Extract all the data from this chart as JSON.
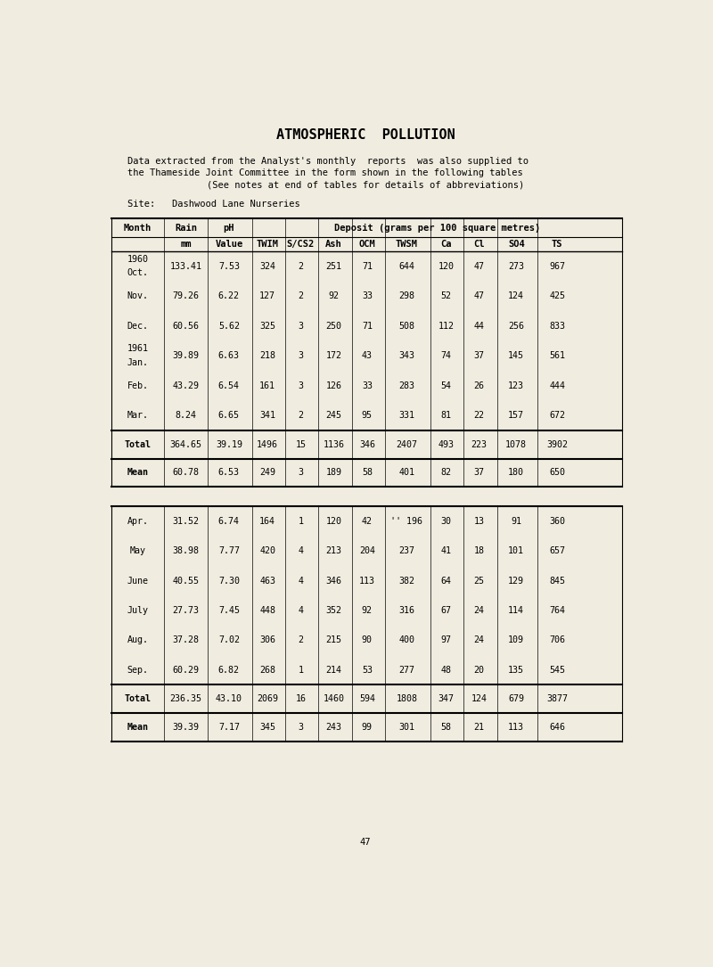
{
  "title": "ATMOSPHERIC  POLLUTION",
  "intro_line1": "Data extracted from the Analyst's monthly  reports  was also supplied to",
  "intro_line2": "the Thameside Joint Committee in the form shown in the following tables",
  "note": "(See notes at end of tables for details of abbreviations)",
  "site": "Site:   Dashwood Lane Nurseries",
  "page_number": "47",
  "bg_color": "#f0ece0",
  "table1": {
    "year_rows": [
      {
        "year": "1960",
        "month": "Oct.",
        "rain": "133.41",
        "ph": "7.53",
        "twim": "324",
        "scs2": "2",
        "ash": "251",
        "ocm": "71",
        "twsm": "644",
        "ca": "120",
        "cl": "47",
        "so4": "273",
        "ts": "967"
      },
      {
        "year": "",
        "month": "Nov.",
        "rain": "79.26",
        "ph": "6.22",
        "twim": "127",
        "scs2": "2",
        "ash": "92",
        "ocm": "33",
        "twsm": "298",
        "ca": "52",
        "cl": "47",
        "so4": "124",
        "ts": "425"
      },
      {
        "year": "",
        "month": "Dec.",
        "rain": "60.56",
        "ph": "5.62",
        "twim": "325",
        "scs2": "3",
        "ash": "250",
        "ocm": "71",
        "twsm": "508",
        "ca": "112",
        "cl": "44",
        "so4": "256",
        "ts": "833"
      },
      {
        "year": "1961",
        "month": "Jan.",
        "rain": "39.89",
        "ph": "6.63",
        "twim": "218",
        "scs2": "3",
        "ash": "172",
        "ocm": "43",
        "twsm": "343",
        "ca": "74",
        "cl": "37",
        "so4": "145",
        "ts": "561"
      },
      {
        "year": "",
        "month": "Feb.",
        "rain": "43.29",
        "ph": "6.54",
        "twim": "161",
        "scs2": "3",
        "ash": "126",
        "ocm": "33",
        "twsm": "283",
        "ca": "54",
        "cl": "26",
        "so4": "123",
        "ts": "444"
      },
      {
        "year": "",
        "month": "Mar.",
        "rain": "8.24",
        "ph": "6.65",
        "twim": "341",
        "scs2": "2",
        "ash": "245",
        "ocm": "95",
        "twsm": "331",
        "ca": "81",
        "cl": "22",
        "so4": "157",
        "ts": "672"
      }
    ],
    "total_row": {
      "label": "Total",
      "rain": "364.65",
      "ph": "39.19",
      "twim": "1496",
      "scs2": "15",
      "ash": "1136",
      "ocm": "346",
      "twsm": "2407",
      "ca": "493",
      "cl": "223",
      "so4": "1078",
      "ts": "3902"
    },
    "mean_row": {
      "label": "Mean",
      "rain": "60.78",
      "ph": "6.53",
      "twim": "249",
      "scs2": "3",
      "ash": "189",
      "ocm": "58",
      "twsm": "401",
      "ca": "82",
      "cl": "37",
      "so4": "180",
      "ts": "650"
    }
  },
  "table2": {
    "rows": [
      {
        "month": "Apr.",
        "rain": "31.52",
        "ph": "6.74",
        "twim": "164",
        "scs2": "1",
        "ash": "120",
        "ocm": "42",
        "twsm": "'' 196",
        "ca": "30",
        "cl": "13",
        "so4": "91",
        "ts": "360"
      },
      {
        "month": "May",
        "rain": "38.98",
        "ph": "7.77",
        "twim": "420",
        "scs2": "4",
        "ash": "213",
        "ocm": "204",
        "twsm": "237",
        "ca": "41",
        "cl": "18",
        "so4": "101",
        "ts": "657"
      },
      {
        "month": "June",
        "rain": "40.55",
        "ph": "7.30",
        "twim": "463",
        "scs2": "4",
        "ash": "346",
        "ocm": "113",
        "twsm": "382",
        "ca": "64",
        "cl": "25",
        "so4": "129",
        "ts": "845"
      },
      {
        "month": "July",
        "rain": "27.73",
        "ph": "7.45",
        "twim": "448",
        "scs2": "4",
        "ash": "352",
        "ocm": "92",
        "twsm": "316",
        "ca": "67",
        "cl": "24",
        "so4": "114",
        "ts": "764"
      },
      {
        "month": "Aug.",
        "rain": "37.28",
        "ph": "7.02",
        "twim": "306",
        "scs2": "2",
        "ash": "215",
        "ocm": "90",
        "twsm": "400",
        "ca": "97",
        "cl": "24",
        "so4": "109",
        "ts": "706"
      },
      {
        "month": "Sep.",
        "rain": "60.29",
        "ph": "6.82",
        "twim": "268",
        "scs2": "1",
        "ash": "214",
        "ocm": "53",
        "twsm": "277",
        "ca": "48",
        "cl": "20",
        "so4": "135",
        "ts": "545"
      }
    ],
    "total_row": {
      "label": "Total",
      "rain": "236.35",
      "ph": "43.10",
      "twim": "2069",
      "scs2": "16",
      "ash": "1460",
      "ocm": "594",
      "twsm": "1808",
      "ca": "347",
      "cl": "124",
      "so4": "679",
      "ts": "3877"
    },
    "mean_row": {
      "label": "Mean",
      "rain": "39.39",
      "ph": "7.17",
      "twim": "345",
      "scs2": "3",
      "ash": "243",
      "ocm": "99",
      "twsm": "301",
      "ca": "58",
      "cl": "21",
      "so4": "113",
      "ts": "646"
    }
  }
}
